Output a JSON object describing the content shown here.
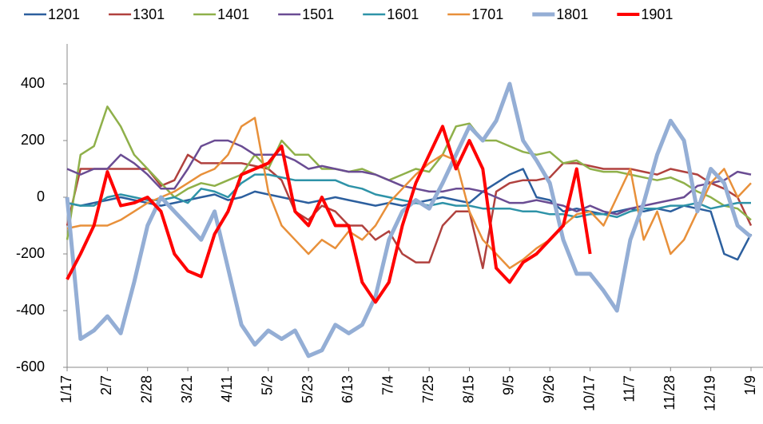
{
  "chart_data": {
    "type": "line",
    "categories": [
      "1/17",
      null,
      null,
      "2/7",
      null,
      null,
      "2/28",
      null,
      null,
      "3/21",
      null,
      null,
      "4/11",
      null,
      null,
      "5/2",
      null,
      null,
      "5/23",
      null,
      null,
      "6/13",
      null,
      null,
      "7/4",
      null,
      null,
      "7/25",
      null,
      null,
      "8/15",
      null,
      null,
      "9/5",
      null,
      null,
      "9/26",
      null,
      null,
      "10/17",
      null,
      null,
      "11/7",
      null,
      null,
      "11/28",
      null,
      null,
      "12/19",
      null,
      null,
      "1/9"
    ],
    "ylim": [
      -600,
      600
    ],
    "yticks": [
      -600,
      -400,
      -200,
      0,
      200,
      400
    ],
    "series": [
      {
        "name": "1201",
        "color": "#2c5f9e",
        "width": 2.5,
        "values": [
          -20,
          -30,
          -20,
          -10,
          0,
          -10,
          -20,
          -30,
          -20,
          -10,
          0,
          10,
          -10,
          0,
          20,
          10,
          0,
          -10,
          -20,
          -10,
          0,
          -10,
          -20,
          -30,
          -20,
          -30,
          -20,
          -10,
          0,
          -10,
          -20,
          20,
          50,
          80,
          100,
          0,
          -10,
          -50,
          -40,
          -50,
          -60,
          -50,
          -40,
          -50,
          -40,
          -50,
          -30,
          -40,
          -50,
          -200,
          -220,
          -130
        ]
      },
      {
        "name": "1301",
        "color": "#b0413e",
        "width": 2.5,
        "values": [
          -100,
          100,
          100,
          100,
          100,
          100,
          100,
          40,
          60,
          150,
          120,
          120,
          120,
          120,
          110,
          100,
          60,
          -50,
          -80,
          -30,
          -50,
          -100,
          -100,
          -150,
          -120,
          -200,
          -230,
          -230,
          -100,
          -50,
          -50,
          -250,
          20,
          50,
          60,
          60,
          70,
          120,
          120,
          110,
          100,
          100,
          100,
          90,
          80,
          100,
          90,
          80,
          50,
          30,
          0,
          -100
        ]
      },
      {
        "name": "1401",
        "color": "#8fb04a",
        "width": 2.5,
        "values": [
          -150,
          150,
          180,
          320,
          250,
          150,
          100,
          50,
          0,
          30,
          50,
          40,
          60,
          80,
          150,
          100,
          200,
          150,
          150,
          100,
          100,
          90,
          100,
          80,
          60,
          80,
          100,
          90,
          150,
          250,
          260,
          200,
          200,
          180,
          160,
          150,
          160,
          120,
          130,
          100,
          90,
          90,
          80,
          70,
          60,
          70,
          50,
          20,
          0,
          -30,
          -40,
          -80
        ]
      },
      {
        "name": "1501",
        "color": "#6a4c93",
        "width": 2.5,
        "values": [
          100,
          80,
          100,
          100,
          150,
          120,
          80,
          30,
          30,
          100,
          180,
          200,
          200,
          180,
          150,
          150,
          150,
          130,
          100,
          110,
          100,
          90,
          90,
          80,
          60,
          40,
          30,
          20,
          20,
          30,
          30,
          20,
          0,
          -20,
          -20,
          -10,
          -20,
          -30,
          -50,
          -30,
          -50,
          -60,
          -40,
          -30,
          -20,
          -10,
          0,
          40,
          50,
          60,
          90,
          80
        ]
      },
      {
        "name": "1601",
        "color": "#2e93a8",
        "width": 2.5,
        "values": [
          -20,
          -30,
          -30,
          0,
          10,
          0,
          -10,
          -10,
          0,
          -20,
          30,
          20,
          0,
          50,
          80,
          80,
          70,
          60,
          60,
          60,
          60,
          40,
          30,
          10,
          0,
          -10,
          -20,
          -30,
          -20,
          -30,
          -30,
          -40,
          -40,
          -40,
          -50,
          -50,
          -60,
          -60,
          -70,
          -60,
          -60,
          -70,
          -50,
          -40,
          -40,
          -30,
          -30,
          -20,
          -40,
          -30,
          -20,
          -20
        ]
      },
      {
        "name": "1701",
        "color": "#e8903a",
        "width": 2.5,
        "values": [
          -110,
          -100,
          -100,
          -100,
          -80,
          -50,
          -20,
          0,
          20,
          50,
          80,
          100,
          150,
          250,
          280,
          20,
          -100,
          -150,
          -200,
          -150,
          -180,
          -120,
          -150,
          -100,
          -20,
          30,
          80,
          120,
          150,
          130,
          -50,
          -150,
          -200,
          -250,
          -220,
          -180,
          -150,
          -100,
          -60,
          -50,
          -100,
          0,
          100,
          -150,
          -50,
          -200,
          -150,
          -50,
          50,
          100,
          0,
          50
        ]
      },
      {
        "name": "1801",
        "color": "#94aed5",
        "width": 5,
        "values": [
          0,
          -500,
          -470,
          -420,
          -480,
          -300,
          -100,
          0,
          -50,
          -100,
          -150,
          -50,
          -250,
          -450,
          -520,
          -470,
          -500,
          -470,
          -560,
          -540,
          -450,
          -480,
          -450,
          -350,
          -150,
          -50,
          -10,
          -40,
          50,
          150,
          250,
          200,
          270,
          400,
          200,
          130,
          50,
          -150,
          -270,
          -270,
          -330,
          -400,
          -150,
          -20,
          150,
          270,
          200,
          -50,
          100,
          50,
          -100,
          -140
        ]
      },
      {
        "name": "1901",
        "color": "#ff0000",
        "width": 4,
        "values": [
          -290,
          -200,
          -100,
          90,
          -30,
          -20,
          0,
          -50,
          -200,
          -260,
          -280,
          -130,
          -50,
          80,
          100,
          120,
          180,
          -50,
          -100,
          0,
          -100,
          -100,
          -300,
          -370,
          -300,
          -100,
          50,
          150,
          250,
          100,
          200,
          100,
          -250,
          -300,
          -230,
          -200,
          -150,
          -100,
          100,
          -200,
          null,
          null,
          null,
          null,
          null,
          null,
          null,
          null,
          null,
          null,
          null,
          null
        ]
      }
    ]
  }
}
